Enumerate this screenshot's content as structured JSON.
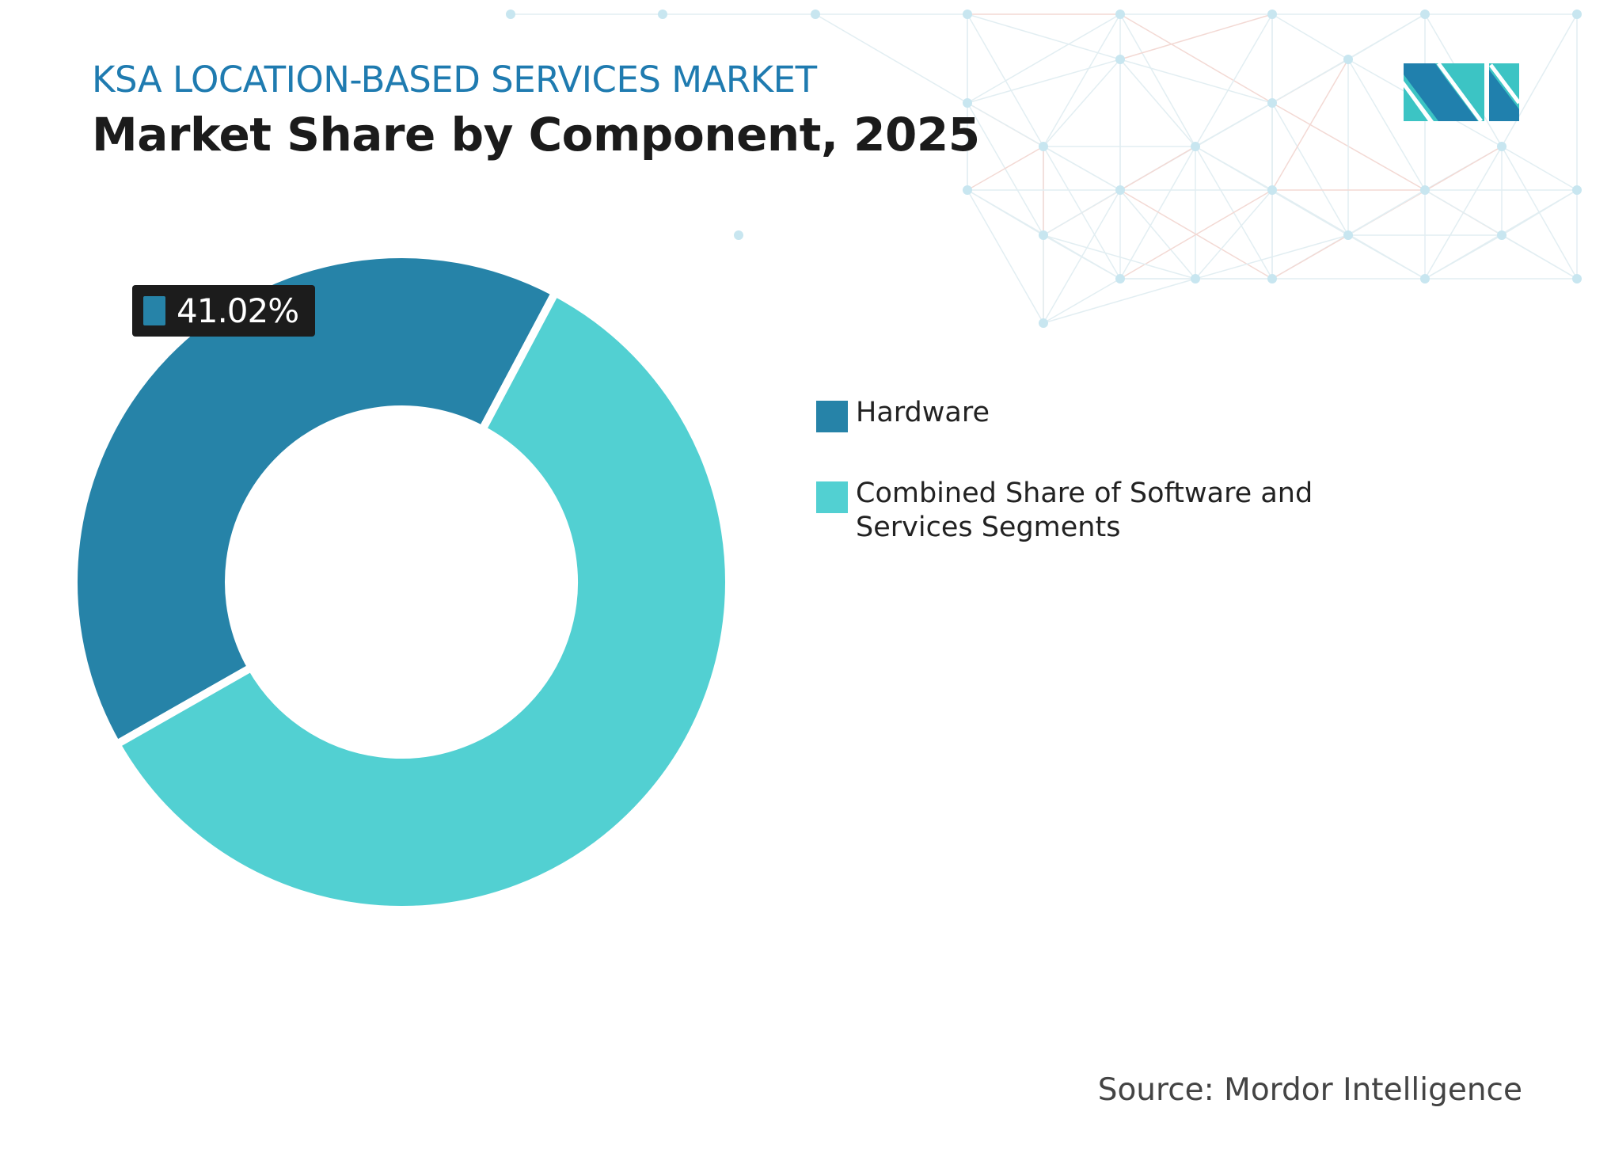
{
  "header": {
    "subtitle": "KSA LOCATION-BASED SERVICES MARKET",
    "title": "Market Share by Component, 2025"
  },
  "chart_data": {
    "type": "pie",
    "style": "donut",
    "categories": [
      "Hardware",
      "Combined Share of Software and Services Segments"
    ],
    "values": [
      41.02,
      58.98
    ],
    "colors": [
      "#2683a8",
      "#52d0d2"
    ],
    "data_labels": [
      {
        "category": "Hardware",
        "text": "41.02%"
      }
    ],
    "legend": "right"
  },
  "source": "Source: Mordor Intelligence",
  "logo": {
    "text": "Mordor Intelligence",
    "colors": [
      "#2080ad",
      "#3cc4c4"
    ]
  }
}
